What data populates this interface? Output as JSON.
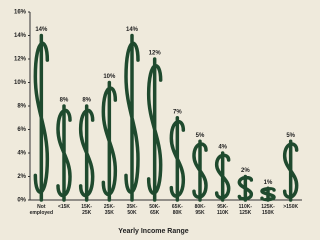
{
  "chart_data": {
    "type": "pictogram",
    "x_label": "Yearly Income Range",
    "categories": [
      "Not\nemployed",
      "<15K",
      "15K-\n25K",
      "25K-\n35K",
      "35K-\n50K",
      "50K-\n65K",
      "65K-\n80K",
      "80K-\n95K",
      "95K-\n110K",
      "110K-\n125K",
      "125K-\n150K",
      ">150K"
    ],
    "values": [
      14,
      8,
      8,
      10,
      14,
      12,
      7,
      5,
      4,
      2,
      1,
      5
    ],
    "value_labels": [
      "14%",
      "8%",
      "8%",
      "10%",
      "14%",
      "12%",
      "7%",
      "5%",
      "4%",
      "2%",
      "1%",
      "5%"
    ],
    "color": "#1f4a2e",
    "ylim": [
      0,
      16
    ],
    "yticks": [
      {
        "value": 0,
        "label": "0%"
      },
      {
        "value": 2,
        "label": "2%"
      },
      {
        "value": 4,
        "label": "4%"
      },
      {
        "value": 6,
        "label": "6%"
      },
      {
        "value": 8,
        "label": "8%"
      },
      {
        "value": 10,
        "label": "10%"
      },
      {
        "value": 12,
        "label": "12%"
      },
      {
        "value": 14,
        "label": "14%"
      },
      {
        "value": 16,
        "label": "16%"
      }
    ]
  }
}
